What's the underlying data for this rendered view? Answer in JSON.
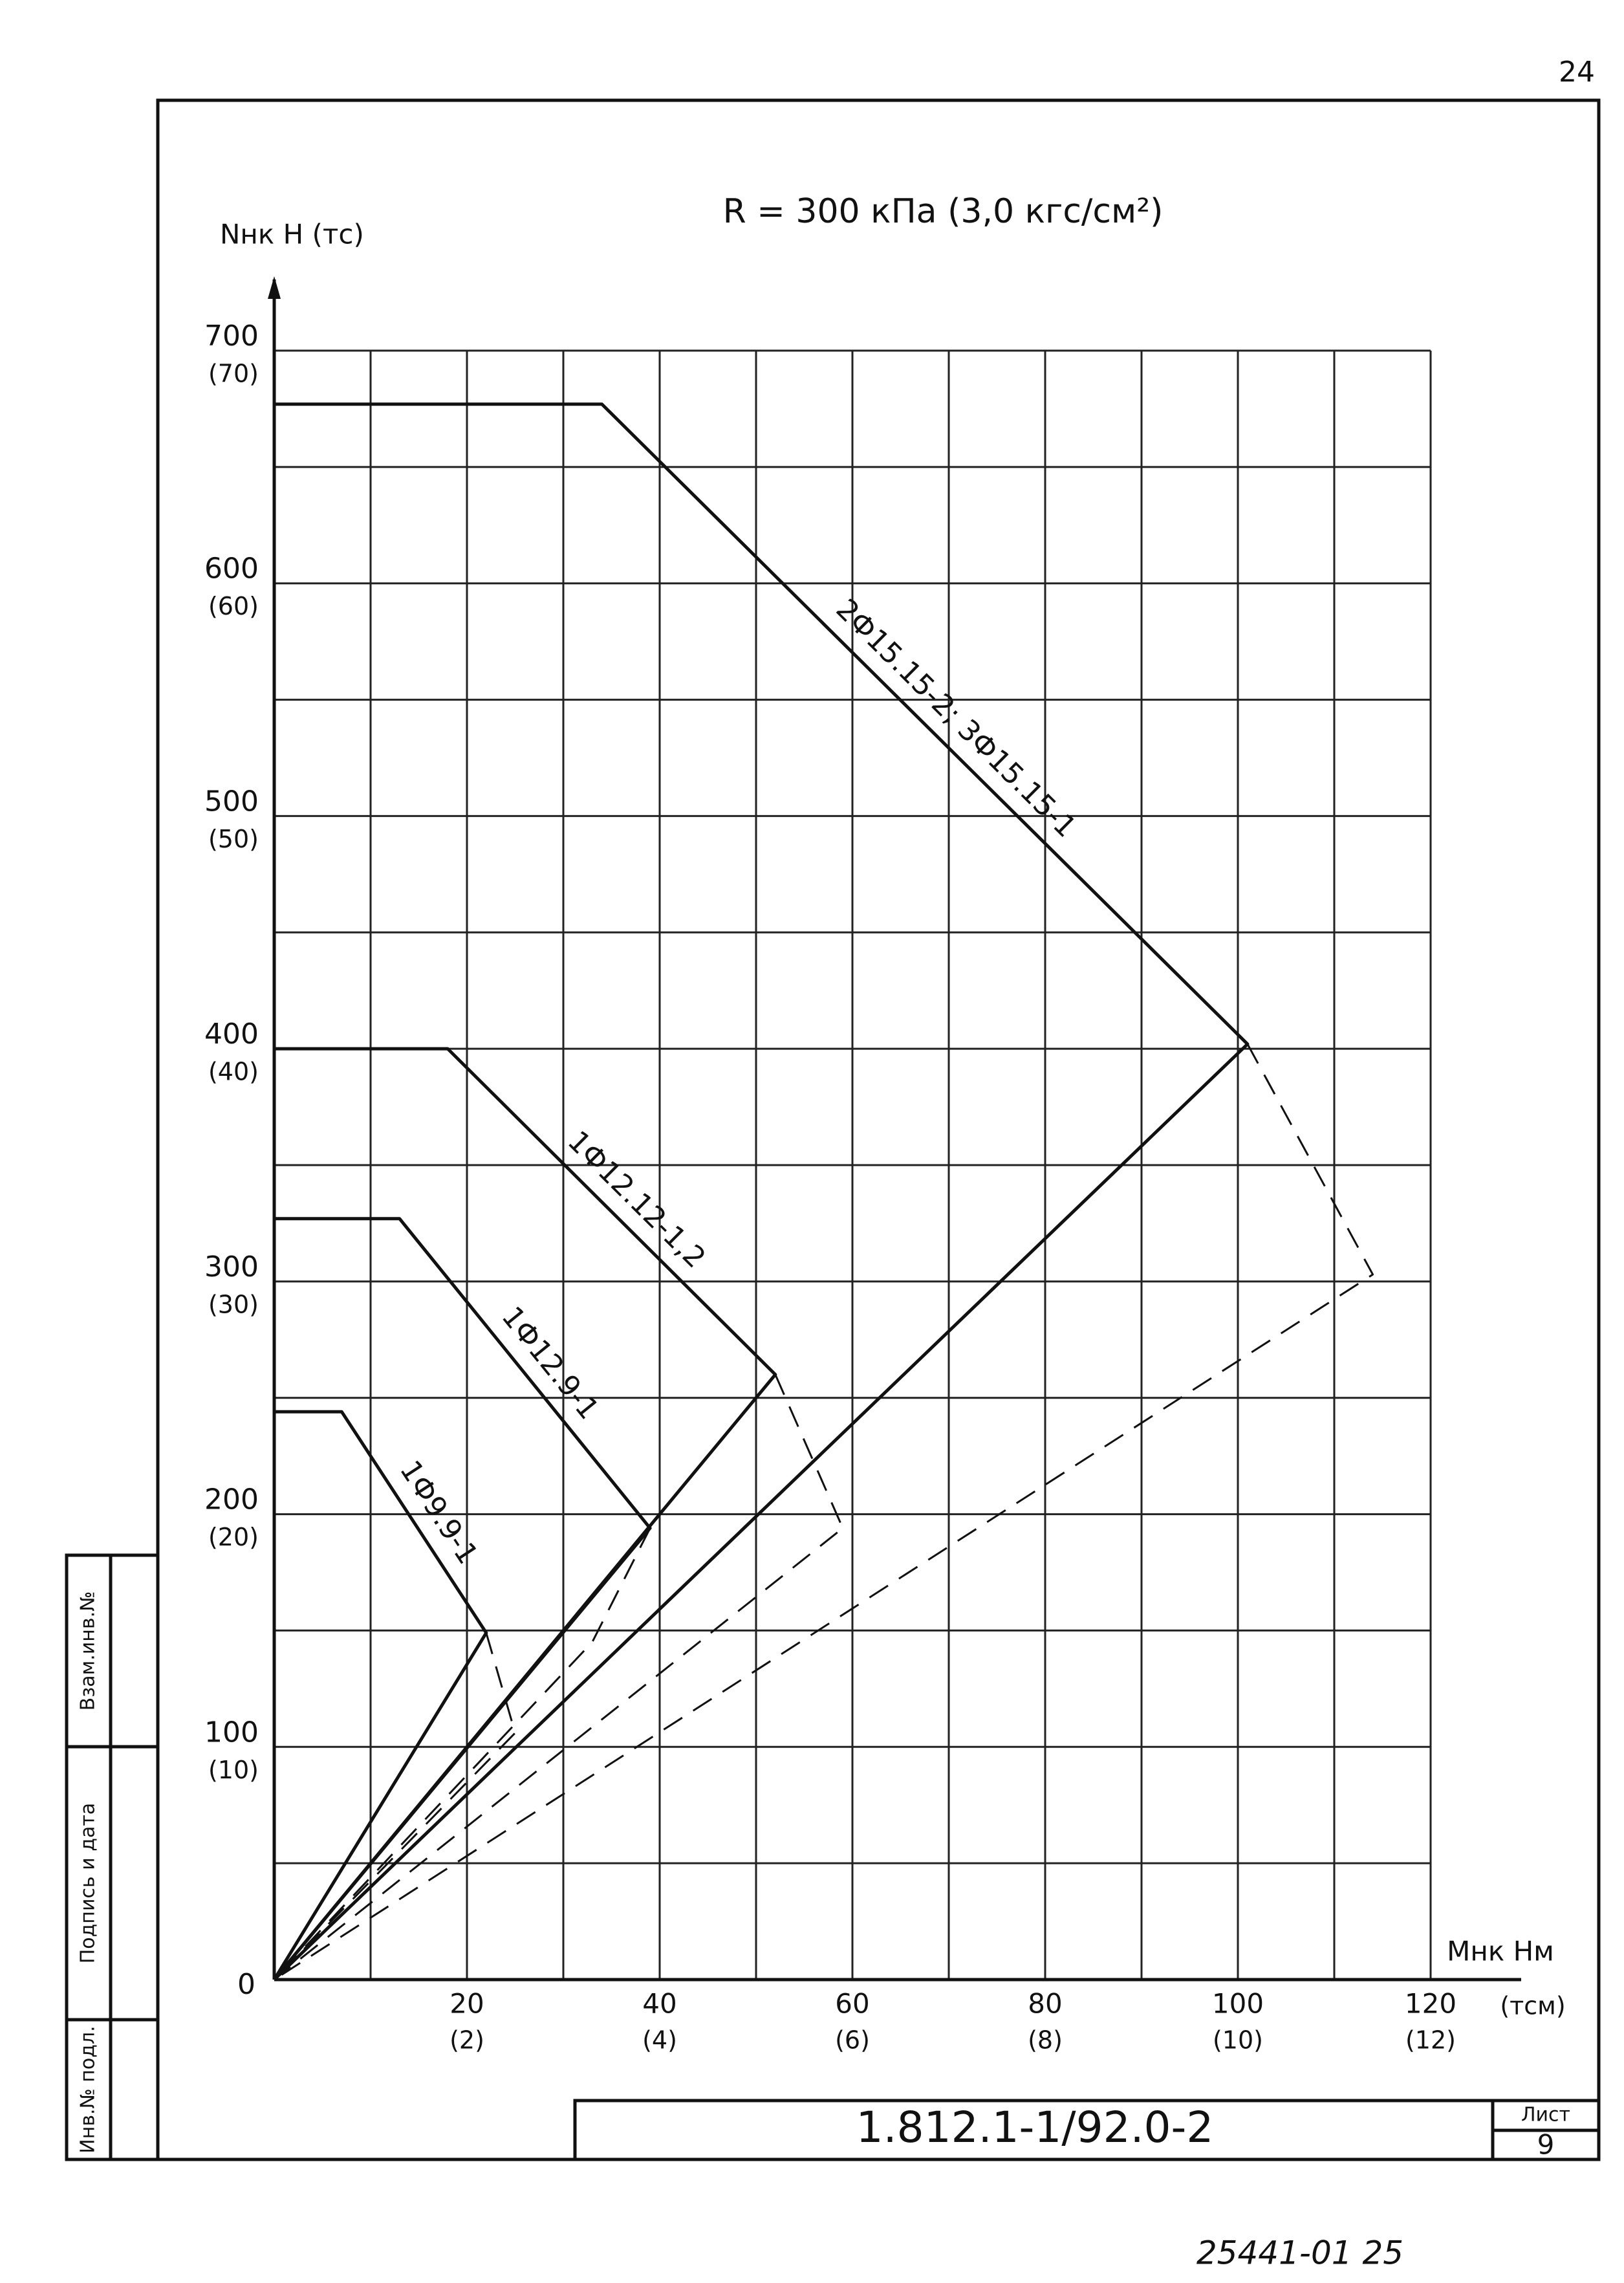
{
  "chart_data": {
    "type": "line",
    "title": "R = 300 кПа (3,0 кгс/см²)",
    "y_label": "Nнк Н (тс)",
    "x_label": "Mнк Нм",
    "x_label_alt": "(тсм)",
    "xlim": [
      0,
      120
    ],
    "ylim": [
      0,
      700
    ],
    "xticks": [
      {
        "value": 20,
        "label": "20",
        "alt": "(2)"
      },
      {
        "value": 40,
        "label": "40",
        "alt": "(4)"
      },
      {
        "value": 60,
        "label": "60",
        "alt": "(6)"
      },
      {
        "value": 80,
        "label": "80",
        "alt": "(8)"
      },
      {
        "value": 100,
        "label": "100",
        "alt": "(10)"
      },
      {
        "value": 120,
        "label": "120",
        "alt": "(12)"
      }
    ],
    "yticks": [
      0,
      {
        "value": 100,
        "label": "100",
        "alt": "(10)"
      },
      {
        "value": 200,
        "label": "200",
        "alt": "(20)"
      },
      {
        "value": 300,
        "label": "300",
        "alt": "(30)"
      },
      {
        "value": 400,
        "label": "400",
        "alt": "(40)"
      },
      {
        "value": 500,
        "label": "500",
        "alt": "(50)"
      },
      {
        "value": 600,
        "label": "600",
        "alt": "(60)"
      },
      {
        "value": 700,
        "label": "700",
        "alt": "(70)"
      }
    ],
    "minor_xticks": [
      10,
      30,
      50,
      70,
      90,
      110
    ],
    "minor_yticks": [
      50,
      150,
      250,
      350,
      450,
      550,
      650
    ],
    "grid": true,
    "series": [
      {
        "name": "2Ф15.15-2; 3Ф15.15-1",
        "color": "#111111",
        "x": [
          0,
          34,
          101,
          0
        ],
        "values": [
          677,
          677,
          402,
          0
        ],
        "dashed_x": [
          101,
          114,
          0
        ],
        "dashed_values": [
          402,
          303,
          0
        ]
      },
      {
        "name": "1Ф12.12-1,2",
        "color": "#111111",
        "x": [
          0,
          18,
          52,
          0
        ],
        "values": [
          400,
          400,
          260,
          0
        ],
        "dashed_x": [
          52,
          59,
          0
        ],
        "dashed_values": [
          260,
          194,
          0
        ]
      },
      {
        "name": "1Ф12.9-1",
        "color": "#111111",
        "x": [
          0,
          13,
          39,
          0
        ],
        "values": [
          327,
          327,
          194,
          0
        ],
        "dashed_x": [
          39,
          33,
          0
        ],
        "dashed_values": [
          194,
          145,
          0
        ]
      },
      {
        "name": "1Ф9.9-1",
        "color": "#111111",
        "x": [
          0,
          7,
          22,
          0
        ],
        "values": [
          244,
          244,
          149,
          0
        ],
        "dashed_x": [
          22,
          25,
          0
        ],
        "dashed_values": [
          149,
          106,
          0
        ]
      }
    ]
  },
  "document": {
    "page_number": "24",
    "code": "1.812.1-1/92.0-2",
    "sheet_label": "Лист",
    "sheet": "9",
    "footer": "25441-01 25",
    "stamps": [
      "Инв.№ подл.",
      "Подпись и дата",
      "Взам.инв.№"
    ]
  }
}
